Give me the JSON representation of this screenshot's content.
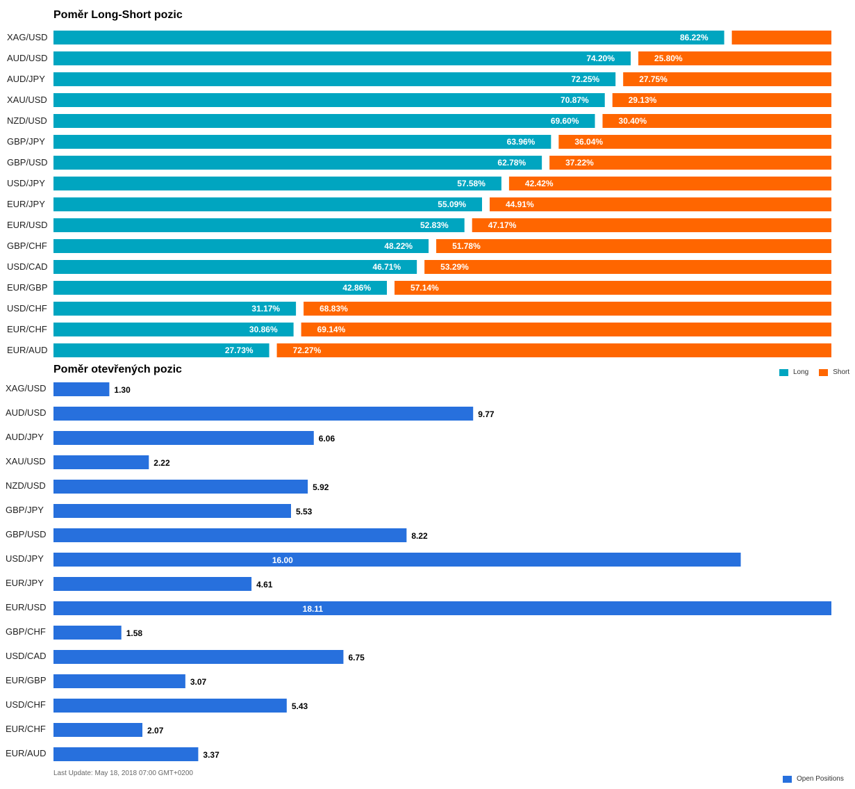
{
  "colors": {
    "long": "#00A5C0",
    "short": "#FF6600",
    "open": "#2770DD"
  },
  "chart_data": [
    {
      "type": "bar",
      "orientation": "horizontal",
      "stacked": true,
      "title": "Poměr Long-Short pozic",
      "categories": [
        "XAG/USD",
        "AUD/USD",
        "AUD/JPY",
        "XAU/USD",
        "NZD/USD",
        "GBP/JPY",
        "GBP/USD",
        "USD/JPY",
        "EUR/JPY",
        "EUR/USD",
        "GBP/CHF",
        "USD/CAD",
        "EUR/GBP",
        "USD/CHF",
        "EUR/CHF",
        "EUR/AUD"
      ],
      "series": [
        {
          "name": "Long",
          "values": [
            86.22,
            74.2,
            72.25,
            70.87,
            69.6,
            63.96,
            62.78,
            57.58,
            55.09,
            52.83,
            48.22,
            46.71,
            42.86,
            31.17,
            30.86,
            27.73
          ]
        },
        {
          "name": "Short",
          "values": [
            13.78,
            25.8,
            27.75,
            29.13,
            30.4,
            36.04,
            37.22,
            42.42,
            44.91,
            47.17,
            51.78,
            53.29,
            57.14,
            68.83,
            69.14,
            72.27
          ]
        }
      ],
      "value_labels": {
        "Long": [
          "86.22%",
          "74.20%",
          "72.25%",
          "70.87%",
          "69.60%",
          "63.96%",
          "62.78%",
          "57.58%",
          "55.09%",
          "52.83%",
          "48.22%",
          "46.71%",
          "42.86%",
          "31.17%",
          "30.86%",
          "27.73%"
        ],
        "Short": [
          "",
          "25.80%",
          "27.75%",
          "29.13%",
          "30.40%",
          "36.04%",
          "37.22%",
          "42.42%",
          "44.91%",
          "47.17%",
          "51.78%",
          "53.29%",
          "57.14%",
          "68.83%",
          "69.14%",
          "72.27%"
        ]
      },
      "ylim": [
        0,
        100
      ],
      "legend": "bottom-right"
    },
    {
      "type": "bar",
      "orientation": "horizontal",
      "title": "Poměr otevřených pozic",
      "categories": [
        "XAG/USD",
        "AUD/USD",
        "AUD/JPY",
        "XAU/USD",
        "NZD/USD",
        "GBP/JPY",
        "GBP/USD",
        "USD/JPY",
        "EUR/JPY",
        "EUR/USD",
        "GBP/CHF",
        "USD/CAD",
        "EUR/GBP",
        "USD/CHF",
        "EUR/CHF",
        "EUR/AUD"
      ],
      "series": [
        {
          "name": "Open Positions",
          "values": [
            1.3,
            9.77,
            6.06,
            2.22,
            5.92,
            5.53,
            8.22,
            16.0,
            4.61,
            18.11,
            1.58,
            6.75,
            3.07,
            5.43,
            2.07,
            3.37
          ]
        }
      ],
      "value_labels": [
        "1.30",
        "9.77",
        "6.06",
        "2.22",
        "5.92",
        "5.53",
        "8.22",
        "16.00",
        "4.61",
        "18.11",
        "1.58",
        "6.75",
        "3.07",
        "5.43",
        "2.07",
        "3.37"
      ],
      "legend": "bottom-right"
    }
  ],
  "footer": {
    "last_update": "Last Update: May 18, 2018 07:00 GMT+0200"
  },
  "legend1": {
    "long": "Long",
    "short": "Short"
  },
  "legend2": {
    "open": "Open Positions"
  }
}
